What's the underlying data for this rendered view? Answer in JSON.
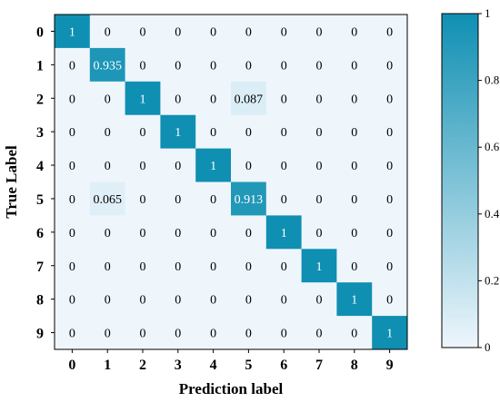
{
  "chart_data": {
    "type": "heatmap",
    "title": "",
    "xlabel": "Prediction label",
    "ylabel": "True Label",
    "x_categories": [
      "0",
      "1",
      "2",
      "3",
      "4",
      "5",
      "6",
      "7",
      "8",
      "9"
    ],
    "y_categories": [
      "0",
      "1",
      "2",
      "3",
      "4",
      "5",
      "6",
      "7",
      "8",
      "9"
    ],
    "values": [
      [
        1,
        0,
        0,
        0,
        0,
        0,
        0,
        0,
        0,
        0
      ],
      [
        0,
        0.935,
        0,
        0,
        0,
        0,
        0,
        0,
        0,
        0
      ],
      [
        0,
        0,
        1,
        0,
        0,
        0.087,
        0,
        0,
        0,
        0
      ],
      [
        0,
        0,
        0,
        1,
        0,
        0,
        0,
        0,
        0,
        0
      ],
      [
        0,
        0,
        0,
        0,
        1,
        0,
        0,
        0,
        0,
        0
      ],
      [
        0,
        0.065,
        0,
        0,
        0,
        0.913,
        0,
        0,
        0,
        0
      ],
      [
        0,
        0,
        0,
        0,
        0,
        0,
        1,
        0,
        0,
        0
      ],
      [
        0,
        0,
        0,
        0,
        0,
        0,
        0,
        1,
        0,
        0
      ],
      [
        0,
        0,
        0,
        0,
        0,
        0,
        0,
        0,
        1,
        0
      ],
      [
        0,
        0,
        0,
        0,
        0,
        0,
        0,
        0,
        0,
        1
      ]
    ],
    "cell_labels": [
      [
        "1",
        "0",
        "0",
        "0",
        "0",
        "0",
        "0",
        "0",
        "0",
        "0"
      ],
      [
        "0",
        "0.935",
        "0",
        "0",
        "0",
        "0",
        "0",
        "0",
        "0",
        "0"
      ],
      [
        "0",
        "0",
        "1",
        "0",
        "0",
        "0.087",
        "0",
        "0",
        "0",
        "0"
      ],
      [
        "0",
        "0",
        "0",
        "1",
        "0",
        "0",
        "0",
        "0",
        "0",
        "0"
      ],
      [
        "0",
        "0",
        "0",
        "0",
        "1",
        "0",
        "0",
        "0",
        "0",
        "0"
      ],
      [
        "0",
        "0.065",
        "0",
        "0",
        "0",
        "0.913",
        "0",
        "0",
        "0",
        "0"
      ],
      [
        "0",
        "0",
        "0",
        "0",
        "0",
        "0",
        "1",
        "0",
        "0",
        "0"
      ],
      [
        "0",
        "0",
        "0",
        "0",
        "0",
        "0",
        "0",
        "1",
        "0",
        "0"
      ],
      [
        "0",
        "0",
        "0",
        "0",
        "0",
        "0",
        "0",
        "0",
        "1",
        "0"
      ],
      [
        "0",
        "0",
        "0",
        "0",
        "0",
        "0",
        "0",
        "0",
        "0",
        "1"
      ]
    ],
    "colorbar": {
      "range": [
        0,
        1
      ],
      "ticks": [
        0,
        0.2,
        0.4,
        0.6,
        0.8,
        1
      ],
      "tick_labels": [
        "0",
        "0.2",
        "0.4",
        "0.6",
        "0.8",
        "1"
      ]
    },
    "colors": {
      "low": "#eef6fc",
      "high": "#0f8fb2",
      "text_dark": "#000000",
      "text_light": "#ffffff"
    },
    "grid": false
  }
}
